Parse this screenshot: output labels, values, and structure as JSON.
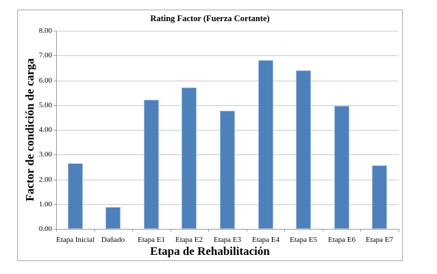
{
  "chart_data": {
    "type": "bar",
    "title": "Rating Factor (Fuerza Cortante)",
    "xlabel": "Etapa de Rehabilitación",
    "ylabel": "Factor de condición de carga",
    "categories": [
      "Etapa Inicial",
      "Dañado",
      "Etapa E1",
      "Etapa E2",
      "Etapa E3",
      "Etapa E4",
      "Etapa E5",
      "Etapa E6",
      "Etapa E7"
    ],
    "values": [
      2.65,
      0.88,
      5.2,
      5.7,
      4.78,
      6.82,
      6.4,
      4.97,
      2.57
    ],
    "ylim": [
      0,
      8
    ],
    "ytick_step": 1,
    "ytick_labels": [
      "0.00",
      "1.00",
      "2.00",
      "3.00",
      "4.00",
      "5.00",
      "6.00",
      "7.00",
      "8.00"
    ],
    "grid": true,
    "legend": false,
    "colors": {
      "bar_fill": "#4e80bc",
      "bar_border": "#a3bfdf",
      "gridline": "#c9c9c9",
      "axis": "#9b9b9b",
      "frame_border": "#a6a6a6",
      "text": "#000000"
    }
  }
}
